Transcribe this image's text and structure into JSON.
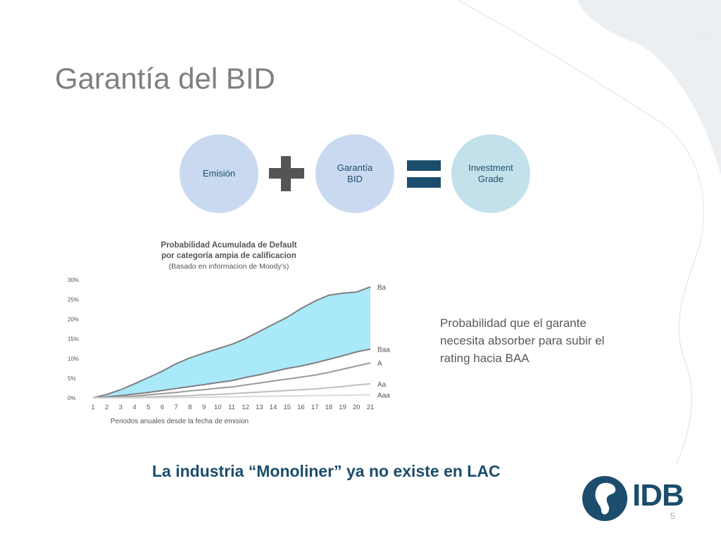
{
  "title": "Garantía del BID",
  "equation": {
    "item1": "Emisión",
    "item2": "Garantía\nBID",
    "result": "Investment\nGrade"
  },
  "chart_title": {
    "line1": "Probabilidad Acumulada de Default",
    "line2": "por categoría ampia de calificacion",
    "line3": "(Basado en informacion de Moody's)"
  },
  "side_note": "Probabilidad que el garante necesita absorber para subir el rating hacia BAA",
  "tagline": "La industria “Monoliner” ya no existe en LAC",
  "logo_text": "IDB",
  "page_number": "5",
  "chart_data": {
    "type": "area",
    "title": "Probabilidad Acumulada de Default por categoría ampia de calificacion",
    "xlabel": "Periodos anuales desde la fecha de emision",
    "ylabel": "",
    "x": [
      1,
      2,
      3,
      4,
      5,
      6,
      7,
      8,
      9,
      10,
      11,
      12,
      13,
      14,
      15,
      16,
      17,
      18,
      19,
      20,
      21
    ],
    "yticks": [
      "0%",
      "5%",
      "10%",
      "15%",
      "20%",
      "25%",
      "30%"
    ],
    "ylim": [
      0,
      30
    ],
    "grid": false,
    "shaded_between": [
      "Baa",
      "Ba"
    ],
    "shade_color": "#a9e9f9",
    "series": [
      {
        "name": "Ba",
        "color": "#7f7f7f",
        "values": [
          0,
          0.9,
          2.1,
          3.6,
          5.2,
          6.8,
          8.7,
          10.2,
          11.4,
          12.5,
          13.6,
          15.1,
          16.9,
          18.7,
          20.5,
          22.7,
          24.6,
          26.1,
          26.6,
          26.9,
          28.2
        ]
      },
      {
        "name": "Baa",
        "color": "#7f7f7f",
        "values": [
          0,
          0.3,
          0.6,
          1.0,
          1.4,
          1.9,
          2.4,
          2.9,
          3.4,
          3.9,
          4.4,
          5.2,
          5.9,
          6.7,
          7.5,
          8.1,
          8.9,
          9.8,
          10.7,
          11.7,
          12.4
        ]
      },
      {
        "name": "A",
        "color": "#9a9a9a",
        "values": [
          0,
          0.1,
          0.3,
          0.5,
          0.8,
          1.1,
          1.4,
          1.8,
          2.1,
          2.5,
          2.8,
          3.3,
          3.8,
          4.3,
          4.8,
          5.3,
          5.8,
          6.5,
          7.3,
          8.1,
          8.9
        ]
      },
      {
        "name": "Aa",
        "color": "#bdbdbd",
        "values": [
          0,
          0.05,
          0.1,
          0.2,
          0.3,
          0.4,
          0.5,
          0.6,
          0.8,
          0.9,
          1.1,
          1.3,
          1.5,
          1.7,
          1.9,
          2.1,
          2.3,
          2.6,
          2.9,
          3.3,
          3.6
        ]
      },
      {
        "name": "Aaa",
        "color": "#d9d9d9",
        "values": [
          0,
          0,
          0,
          0.02,
          0.05,
          0.08,
          0.1,
          0.15,
          0.2,
          0.25,
          0.3,
          0.35,
          0.4,
          0.45,
          0.5,
          0.55,
          0.6,
          0.65,
          0.7,
          0.75,
          0.8
        ]
      }
    ]
  }
}
